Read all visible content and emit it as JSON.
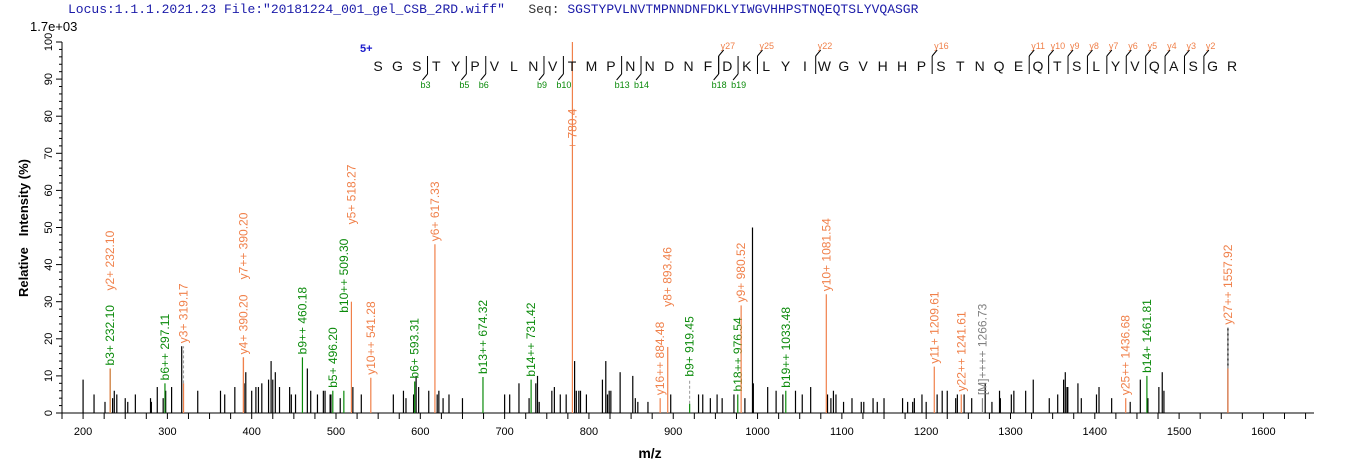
{
  "header": {
    "locus": "Locus:1.1.1.2021.23",
    "file": "File:\"20181224_001_gel_CSB_2RD.wiff\"",
    "seq_label": "Seq:",
    "seq": "SGSTYPVLNVTMPNNDNFDKLYIWGVHHPSTNQEQTSLYVQASGR"
  },
  "colors": {
    "y_ion": "#f0804a",
    "b_ion": "#0a8a0a",
    "precursor": "#808080",
    "peak": "#000000",
    "header": "#1a1aa8",
    "charge": "#1a1acc"
  },
  "chart_data": {
    "type": "bar",
    "title": "",
    "xlabel": "m/z",
    "ylabel": "Relative   Intensity (%)",
    "y_scale_label": "1.7e+03",
    "xlim": [
      175,
      1660
    ],
    "ylim": [
      0,
      100
    ],
    "xticks": [
      200,
      300,
      400,
      500,
      600,
      700,
      800,
      900,
      1000,
      1100,
      1200,
      1300,
      1400,
      1500,
      1600
    ],
    "yticks": [
      0,
      10,
      20,
      30,
      40,
      50,
      60,
      70,
      80,
      90,
      100
    ],
    "grid": false,
    "peptide": {
      "sequence": "SGSTYPVLNVTMPNNDNFDKLYIWGVHHPSTNQEQTSLYVQASGR",
      "charge": "5+",
      "b_ions": [
        3,
        5,
        6,
        9,
        10,
        13,
        14,
        18,
        19
      ],
      "y_ions": [
        27,
        25,
        22,
        16,
        11,
        10,
        9,
        8,
        7,
        6,
        5,
        4,
        3,
        2
      ]
    },
    "peaks": [
      [
        200,
        9
      ],
      [
        213,
        5
      ],
      [
        226,
        3
      ],
      [
        235,
        4
      ],
      [
        237,
        6
      ],
      [
        240,
        5
      ],
      [
        250,
        4
      ],
      [
        253,
        3
      ],
      [
        262,
        5
      ],
      [
        280,
        4
      ],
      [
        281,
        3
      ],
      [
        288,
        7
      ],
      [
        295,
        4
      ],
      [
        298,
        6
      ],
      [
        305,
        7
      ],
      [
        317,
        18
      ],
      [
        336,
        6
      ],
      [
        363,
        6
      ],
      [
        368,
        5
      ],
      [
        380,
        7
      ],
      [
        391,
        8
      ],
      [
        393,
        11
      ],
      [
        400,
        6
      ],
      [
        405,
        7
      ],
      [
        408,
        7
      ],
      [
        412,
        8
      ],
      [
        420,
        9
      ],
      [
        423,
        14
      ],
      [
        425,
        9
      ],
      [
        428,
        11
      ],
      [
        433,
        7
      ],
      [
        445,
        7
      ],
      [
        447,
        5
      ],
      [
        452,
        5
      ],
      [
        466,
        12
      ],
      [
        470,
        6
      ],
      [
        478,
        5
      ],
      [
        485,
        6
      ],
      [
        487,
        6
      ],
      [
        493,
        5
      ],
      [
        494,
        5
      ],
      [
        505,
        4
      ],
      [
        520,
        7
      ],
      [
        530,
        5
      ],
      [
        568,
        5
      ],
      [
        580,
        6
      ],
      [
        583,
        4
      ],
      [
        592,
        5
      ],
      [
        595,
        10
      ],
      [
        598,
        7
      ],
      [
        610,
        6
      ],
      [
        620,
        5
      ],
      [
        622,
        6
      ],
      [
        627,
        4
      ],
      [
        634,
        5
      ],
      [
        650,
        4
      ],
      [
        700,
        5
      ],
      [
        706,
        5
      ],
      [
        717,
        8
      ],
      [
        729,
        4
      ],
      [
        737,
        8
      ],
      [
        739,
        10
      ],
      [
        741,
        3
      ],
      [
        756,
        6
      ],
      [
        759,
        7
      ],
      [
        766,
        5
      ],
      [
        773,
        5
      ],
      [
        783,
        14
      ],
      [
        785,
        6
      ],
      [
        788,
        6
      ],
      [
        790,
        6
      ],
      [
        797,
        5
      ],
      [
        816,
        9
      ],
      [
        820,
        14
      ],
      [
        822,
        5
      ],
      [
        824,
        6
      ],
      [
        826,
        6
      ],
      [
        837,
        11
      ],
      [
        852,
        10
      ],
      [
        855,
        4
      ],
      [
        858,
        3
      ],
      [
        870,
        3
      ],
      [
        897,
        5
      ],
      [
        930,
        5
      ],
      [
        935,
        5
      ],
      [
        944,
        4
      ],
      [
        952,
        5
      ],
      [
        958,
        4
      ],
      [
        972,
        5
      ],
      [
        985,
        4
      ],
      [
        994,
        50
      ],
      [
        995,
        8
      ],
      [
        1012,
        7
      ],
      [
        1022,
        6
      ],
      [
        1030,
        5
      ],
      [
        1045,
        6
      ],
      [
        1053,
        5
      ],
      [
        1063,
        7
      ],
      [
        1083,
        5
      ],
      [
        1087,
        4
      ],
      [
        1090,
        6
      ],
      [
        1093,
        5
      ],
      [
        1102,
        3
      ],
      [
        1112,
        4
      ],
      [
        1123,
        3
      ],
      [
        1126,
        3
      ],
      [
        1137,
        4
      ],
      [
        1142,
        3
      ],
      [
        1150,
        4
      ],
      [
        1172,
        4
      ],
      [
        1178,
        3
      ],
      [
        1184,
        3
      ],
      [
        1186,
        4
      ],
      [
        1195,
        5
      ],
      [
        1200,
        3
      ],
      [
        1213,
        5
      ],
      [
        1219,
        6
      ],
      [
        1225,
        6
      ],
      [
        1235,
        4
      ],
      [
        1237,
        5
      ],
      [
        1245,
        5
      ],
      [
        1254,
        4
      ],
      [
        1270,
        8
      ],
      [
        1278,
        3
      ],
      [
        1287,
        6
      ],
      [
        1288,
        4
      ],
      [
        1301,
        5
      ],
      [
        1304,
        6
      ],
      [
        1318,
        6
      ],
      [
        1327,
        9
      ],
      [
        1346,
        4
      ],
      [
        1356,
        5
      ],
      [
        1363,
        9
      ],
      [
        1365,
        11
      ],
      [
        1367,
        7
      ],
      [
        1368,
        7
      ],
      [
        1380,
        8
      ],
      [
        1384,
        4
      ],
      [
        1402,
        5
      ],
      [
        1405,
        7
      ],
      [
        1420,
        4
      ],
      [
        1442,
        3
      ],
      [
        1454,
        9
      ],
      [
        1463,
        4
      ],
      [
        1476,
        7
      ],
      [
        1480,
        11
      ],
      [
        1482,
        6
      ],
      [
        1557.92,
        23
      ]
    ],
    "annotations": [
      {
        "label": "b3+ 232.10",
        "mz": 232.1,
        "intensity": 12,
        "ion": "b"
      },
      {
        "label": "y2+ 232.10",
        "mz": 232.1,
        "intensity": 12,
        "ion": "y",
        "stack": 1
      },
      {
        "label": "b6++ 297.11",
        "mz": 297.11,
        "intensity": 8,
        "ion": "b"
      },
      {
        "label": "y3+ 319.17",
        "mz": 319.17,
        "intensity": 8,
        "ion": "y",
        "label_at": 18
      },
      {
        "label": "y4+ 390.20",
        "mz": 390.2,
        "intensity": 15,
        "ion": "y"
      },
      {
        "label": "y7++ 390.20",
        "mz": 390.2,
        "intensity": 15,
        "ion": "y",
        "stack": 1
      },
      {
        "label": "b9++ 460.18",
        "mz": 460.18,
        "intensity": 15,
        "ion": "b"
      },
      {
        "label": "b5+ 496.20",
        "mz": 496.2,
        "intensity": 6,
        "ion": "b"
      },
      {
        "label": "b10++ 509.30",
        "mz": 509.3,
        "intensity": 6,
        "ion": "b"
      },
      {
        "label": "y5+ 518.27",
        "mz": 518.27,
        "intensity": 30,
        "ion": "y"
      },
      {
        "label": "y10++ 541.28",
        "mz": 541.28,
        "intensity": 9.5,
        "ion": "y"
      },
      {
        "label": "b6+ 593.31",
        "mz": 593.31,
        "intensity": 8.5,
        "ion": "b"
      },
      {
        "label": "y6+ 617.33",
        "mz": 617.33,
        "intensity": 45.5,
        "ion": "y"
      },
      {
        "label": "b13++ 674.32",
        "mz": 674.32,
        "intensity": 9.7,
        "ion": "b"
      },
      {
        "label": "b14++ 731.42",
        "mz": 731.42,
        "intensity": 9,
        "ion": "b"
      },
      {
        "label": "+ 780.4",
        "mz": 780.4,
        "intensity": 100,
        "ion": "y",
        "label_at": 93
      },
      {
        "label": "y16++ 884.48",
        "mz": 884.48,
        "intensity": 4,
        "ion": "y"
      },
      {
        "label": "y8+ 893.46",
        "mz": 893.46,
        "intensity": 17.8,
        "ion": "y"
      },
      {
        "label": "b9+ 919.45",
        "mz": 919.45,
        "intensity": 2.5,
        "ion": "b",
        "label_at": 9
      },
      {
        "label": "b18++ 976.54",
        "mz": 976.54,
        "intensity": 5,
        "ion": "b"
      },
      {
        "label": "y9+ 980.52",
        "mz": 980.52,
        "intensity": 29,
        "ion": "y"
      },
      {
        "label": "b19++ 1033.48",
        "mz": 1033.48,
        "intensity": 6,
        "ion": "b"
      },
      {
        "label": "y10+ 1081.54",
        "mz": 1081.54,
        "intensity": 32,
        "ion": "y"
      },
      {
        "label": "y11+ 1209.61",
        "mz": 1209.61,
        "intensity": 12.5,
        "ion": "y"
      },
      {
        "label": "y22++ 1241.61",
        "mz": 1241.61,
        "intensity": 5,
        "ion": "y"
      },
      {
        "label": "[M]++++ 1266.73",
        "mz": 1266.73,
        "intensity": 4,
        "ion": "M"
      },
      {
        "label": "y25++ 1436.68",
        "mz": 1436.68,
        "intensity": 4,
        "ion": "y"
      },
      {
        "label": "b14+ 1461.81",
        "mz": 1461.81,
        "intensity": 10,
        "ion": "b"
      },
      {
        "label": "y27++ 1557.92",
        "mz": 1557.92,
        "intensity": 12,
        "ion": "y",
        "label_at": 23
      }
    ]
  }
}
